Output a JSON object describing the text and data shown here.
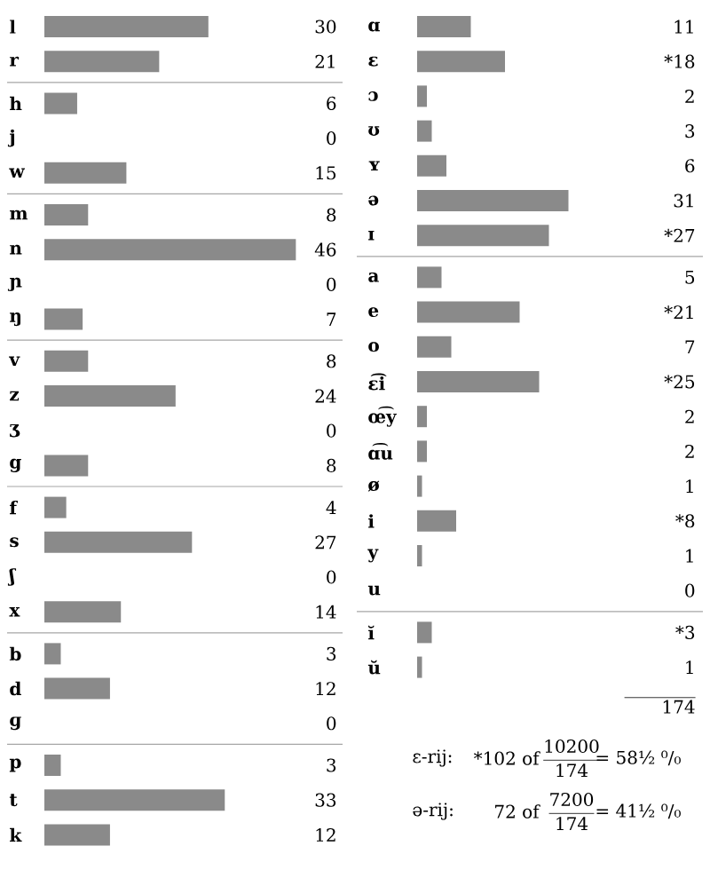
{
  "chart_data": [
    {
      "type": "bar",
      "orientation": "horizontal",
      "categories": [
        "l",
        "r"
      ],
      "values": [
        30,
        21
      ],
      "data_labels": true,
      "color": "#8a8a8a"
    },
    {
      "type": "bar",
      "orientation": "horizontal",
      "categories": [
        "h",
        "j",
        "w"
      ],
      "values": [
        6,
        0,
        15
      ],
      "data_labels": true,
      "color": "#8a8a8a"
    },
    {
      "type": "bar",
      "orientation": "horizontal",
      "categories": [
        "m",
        "n",
        "ɲ",
        "ŋ"
      ],
      "values": [
        8,
        46,
        0,
        7
      ],
      "data_labels": true,
      "color": "#8a8a8a"
    },
    {
      "type": "bar",
      "orientation": "horizontal",
      "categories": [
        "v",
        "z",
        "ʒ",
        "g"
      ],
      "values": [
        8,
        24,
        0,
        8
      ],
      "data_labels": true,
      "color": "#8a8a8a"
    },
    {
      "type": "bar",
      "orientation": "horizontal",
      "categories": [
        "f",
        "s",
        "ʃ",
        "x"
      ],
      "values": [
        4,
        27,
        0,
        14
      ],
      "data_labels": true,
      "color": "#8a8a8a"
    },
    {
      "type": "bar",
      "orientation": "horizontal",
      "categories": [
        "b",
        "d",
        "ɡ"
      ],
      "values": [
        3,
        12,
        0
      ],
      "data_labels": true,
      "color": "#8a8a8a"
    },
    {
      "type": "bar",
      "orientation": "horizontal",
      "categories": [
        "p",
        "t",
        "k"
      ],
      "values": [
        3,
        33,
        12
      ],
      "data_labels": true,
      "color": "#8a8a8a"
    },
    {
      "type": "bar",
      "orientation": "horizontal",
      "categories": [
        "ɑ",
        "ɛ",
        "ɔ",
        "ʊ",
        "ʏ",
        "ə",
        "ɪ"
      ],
      "values": [
        11,
        18,
        2,
        3,
        6,
        31,
        27
      ],
      "value_labels": [
        "11",
        "*18",
        "2",
        "3",
        "6",
        "31",
        "*27"
      ],
      "color": "#8a8a8a"
    },
    {
      "type": "bar",
      "orientation": "horizontal",
      "categories": [
        "a",
        "e",
        "o",
        "ɛ͡i",
        "œ͡y",
        "ɑ͡u",
        "ø",
        "i",
        "y",
        "u"
      ],
      "values": [
        5,
        21,
        7,
        25,
        2,
        2,
        1,
        8,
        1,
        0
      ],
      "value_labels": [
        "5",
        "*21",
        "7",
        "*25",
        "2",
        "2",
        "1",
        "*8",
        "1",
        "0"
      ],
      "color": "#8a8a8a"
    },
    {
      "type": "bar",
      "orientation": "horizontal",
      "categories": [
        "ĭ",
        "ŭ"
      ],
      "values": [
        3,
        1
      ],
      "value_labels": [
        "*3",
        "1"
      ],
      "color": "#8a8a8a"
    },
    {
      "type": "other",
      "annotations": [
        "174",
        "ɛ-rij:",
        "*102 of",
        "10200",
        "174",
        "= 58½ ⁰/₀",
        "ə-rij:",
        "72 of",
        "7200",
        "174",
        "= 41½ ⁰/₀"
      ]
    }
  ]
}
